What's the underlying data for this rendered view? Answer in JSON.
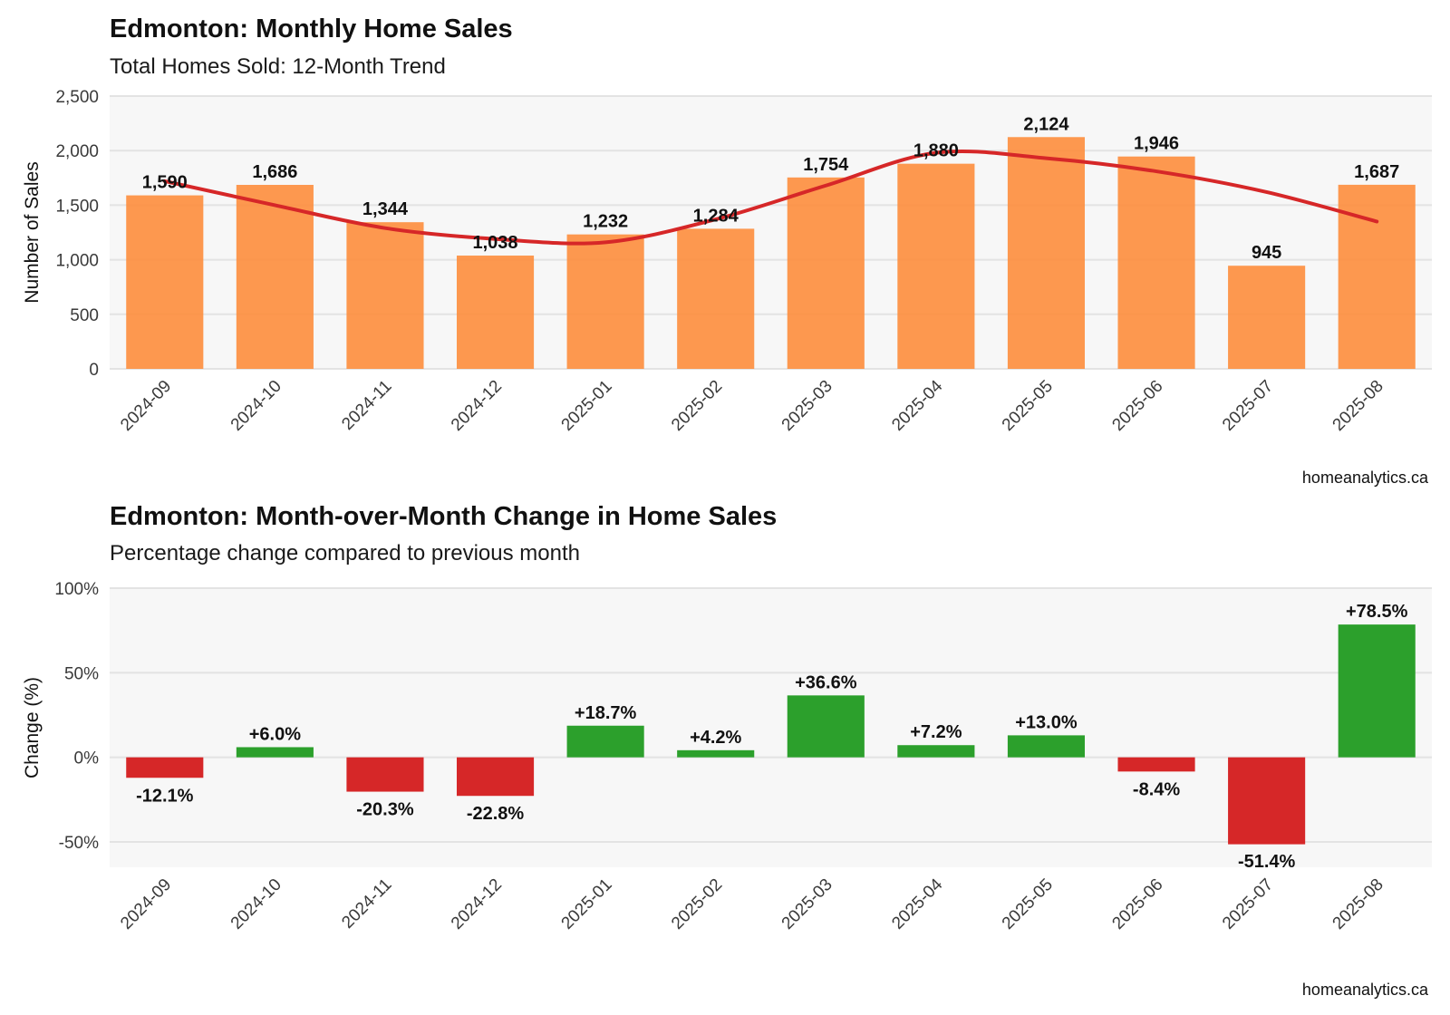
{
  "chart_data": [
    {
      "type": "bar",
      "title": "Edmonton: Monthly Home Sales",
      "subtitle": "Total Homes Sold: 12-Month Trend",
      "xlabel": "",
      "ylabel": "Number of Sales",
      "ylim": [
        0,
        2500
      ],
      "yticks": [
        0,
        500,
        1000,
        1500,
        2000,
        2500
      ],
      "ytick_labels": [
        "0",
        "500",
        "1,000",
        "1,500",
        "2,000",
        "2,500"
      ],
      "categories": [
        "2024-09",
        "2024-10",
        "2024-11",
        "2024-12",
        "2025-01",
        "2025-02",
        "2025-03",
        "2025-04",
        "2025-05",
        "2025-06",
        "2025-07",
        "2025-08"
      ],
      "series": [
        {
          "values": [
            1590,
            1686,
            1344,
            1038,
            1232,
            1284,
            1754,
            1880,
            2124,
            1946,
            945,
            1687
          ]
        }
      ],
      "data_labels": [
        "1,590",
        "1,686",
        "1,344",
        "1,038",
        "1,232",
        "1,284",
        "1,754",
        "1,880",
        "2,124",
        "1,946",
        "945",
        "1,687"
      ],
      "trend_line": [
        1720,
        1500,
        1290,
        1190,
        1160,
        1370,
        1680,
        1980,
        1930,
        1810,
        1620,
        1350
      ],
      "bar_color": "#fd8d3c",
      "trend_color": "#d62728",
      "grid": true,
      "source": "homeanalytics.ca"
    },
    {
      "type": "bar",
      "title": "Edmonton: Month-over-Month Change in Home Sales",
      "subtitle": "Percentage change compared to previous month",
      "xlabel": "",
      "ylabel": "Change (%)",
      "ylim": [
        -65,
        100
      ],
      "yticks": [
        -50,
        0,
        50,
        100
      ],
      "ytick_labels": [
        "-50%",
        "0%",
        "50%",
        "100%"
      ],
      "categories": [
        "2024-09",
        "2024-10",
        "2024-11",
        "2024-12",
        "2025-01",
        "2025-02",
        "2025-03",
        "2025-04",
        "2025-05",
        "2025-06",
        "2025-07",
        "2025-08"
      ],
      "series": [
        {
          "values": [
            -12.1,
            6.0,
            -20.3,
            -22.8,
            18.7,
            4.2,
            36.6,
            7.2,
            13.0,
            -8.4,
            -51.4,
            78.5
          ]
        }
      ],
      "data_labels": [
        "-12.1%",
        "+6.0%",
        "-20.3%",
        "-22.8%",
        "+18.7%",
        "+4.2%",
        "+36.6%",
        "+7.2%",
        "+13.0%",
        "-8.4%",
        "-51.4%",
        "+78.5%"
      ],
      "positive_color": "#2ca02c",
      "negative_color": "#d62728",
      "grid": true,
      "source": "homeanalytics.ca"
    }
  ]
}
